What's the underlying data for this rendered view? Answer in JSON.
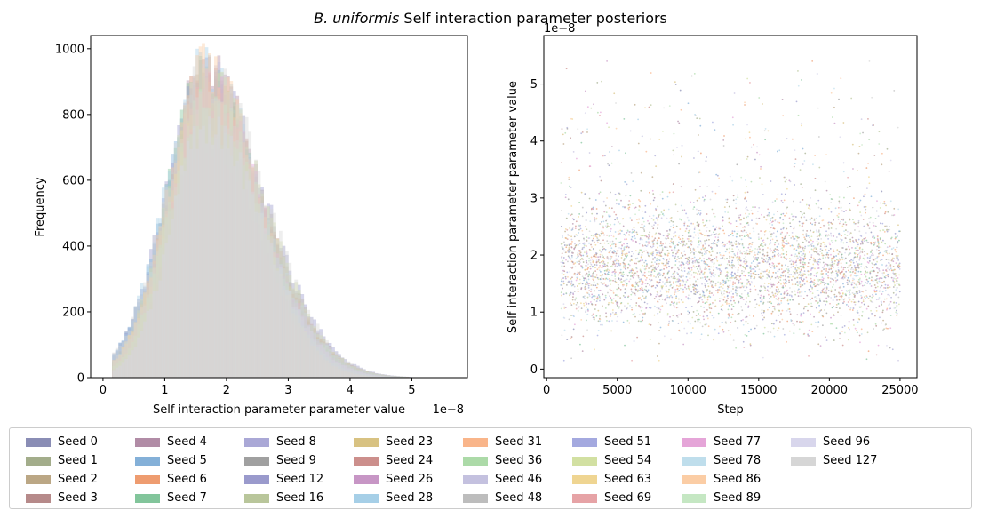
{
  "figure_title_prefix": "B. uniformis",
  "figure_title_suffix": " Self interaction parameter posteriors",
  "chart_data": [
    {
      "type": "histogram",
      "xlabel": "Self interaction parameter parameter value",
      "ylabel": "Frequency",
      "x_offset_label": "1e−8",
      "xlim": [
        -0.2,
        5.9
      ],
      "ylim": [
        0,
        1040
      ],
      "xticks": [
        0,
        1,
        2,
        3,
        4,
        5
      ],
      "yticks": [
        0,
        200,
        400,
        600,
        800,
        1000
      ],
      "approx_distribution": {
        "mode_x": 1.75,
        "peak_frequency": 980,
        "support": [
          0.2,
          5.5
        ],
        "units": "1e-8"
      }
    },
    {
      "type": "scatter",
      "xlabel": "Step",
      "ylabel": "Self interaction parameter parameter value",
      "y_offset_label": "1e−8",
      "xlim": [
        -200,
        26200
      ],
      "ylim": [
        -0.15,
        5.85
      ],
      "xticks": [
        0,
        5000,
        10000,
        15000,
        20000,
        25000
      ],
      "yticks": [
        0,
        1,
        2,
        3,
        4,
        5
      ],
      "trace_range": {
        "step_start": 1000,
        "step_end": 25000,
        "typical_low": 0.6,
        "typical_high": 3.3,
        "max_value": 5.5
      }
    }
  ],
  "legend": {
    "columns": 9,
    "items": [
      {
        "label": "Seed 0",
        "color": "#8a8db5"
      },
      {
        "label": "Seed 1",
        "color": "#a3ad8b"
      },
      {
        "label": "Seed 2",
        "color": "#bba785"
      },
      {
        "label": "Seed 3",
        "color": "#b68a8a"
      },
      {
        "label": "Seed 4",
        "color": "#b18ca6"
      },
      {
        "label": "Seed 5",
        "color": "#84b0d8"
      },
      {
        "label": "Seed 6",
        "color": "#ee9c70"
      },
      {
        "label": "Seed 7",
        "color": "#82c59b"
      },
      {
        "label": "Seed 8",
        "color": "#aaa8d6"
      },
      {
        "label": "Seed 9",
        "color": "#a0a0a0"
      },
      {
        "label": "Seed 12",
        "color": "#9a9acc"
      },
      {
        "label": "Seed 16",
        "color": "#b9c69b"
      },
      {
        "label": "Seed 23",
        "color": "#d8c282"
      },
      {
        "label": "Seed 24",
        "color": "#cc8f8c"
      },
      {
        "label": "Seed 26",
        "color": "#c796c5"
      },
      {
        "label": "Seed 28",
        "color": "#a6cfe7"
      },
      {
        "label": "Seed 31",
        "color": "#f9b58a"
      },
      {
        "label": "Seed 36",
        "color": "#acdaa8"
      },
      {
        "label": "Seed 46",
        "color": "#c4c1df"
      },
      {
        "label": "Seed 48",
        "color": "#bdbdbd"
      },
      {
        "label": "Seed 51",
        "color": "#a4a9df"
      },
      {
        "label": "Seed 54",
        "color": "#d2e0a2"
      },
      {
        "label": "Seed 63",
        "color": "#efd592"
      },
      {
        "label": "Seed 69",
        "color": "#e6a3a6"
      },
      {
        "label": "Seed 77",
        "color": "#e5a5d8"
      },
      {
        "label": "Seed 78",
        "color": "#bfdeec"
      },
      {
        "label": "Seed 86",
        "color": "#fbcda5"
      },
      {
        "label": "Seed 89",
        "color": "#c5e7c3"
      },
      {
        "label": "Seed 96",
        "color": "#d8d6ec"
      },
      {
        "label": "Seed 127",
        "color": "#d6d6d6"
      }
    ]
  }
}
